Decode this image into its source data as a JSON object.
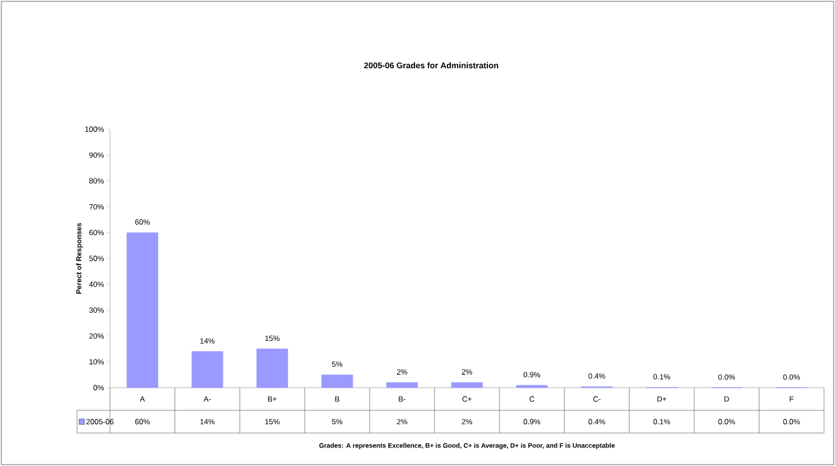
{
  "chart_data": {
    "type": "bar",
    "title": "2005-06 Grades for Administration",
    "annotations": [
      "Grades: A represents Excellence,  B+ is Good, C+ is Average, D+ is Poor, and F is Unacceptable"
    ],
    "ylabel": "Perect of Responses",
    "categories": [
      "A",
      "A-",
      "B+",
      "B",
      "B-",
      "C+",
      "C",
      "C-",
      "D+",
      "D",
      "F"
    ],
    "series": [
      {
        "name": "2005-06",
        "color": "#9999ff",
        "values": [
          60,
          14,
          15,
          5,
          2,
          2,
          0.9,
          0.4,
          0.1,
          0.0,
          0.0
        ],
        "value_labels": [
          "60%",
          "14%",
          "15%",
          "5%",
          "2%",
          "2%",
          "0.9%",
          "0.4%",
          "0.1%",
          "0.0%",
          "0.0%"
        ]
      }
    ],
    "ylim": [
      0,
      100
    ],
    "yticks": [
      {
        "value": 0,
        "label": "0%"
      },
      {
        "value": 10,
        "label": "10%"
      },
      {
        "value": 20,
        "label": "20%"
      },
      {
        "value": 30,
        "label": "30%"
      },
      {
        "value": 40,
        "label": "40%"
      },
      {
        "value": 50,
        "label": "50%"
      },
      {
        "value": 60,
        "label": "60%"
      },
      {
        "value": 70,
        "label": "70%"
      },
      {
        "value": 80,
        "label": "80%"
      },
      {
        "value": 90,
        "label": "90%"
      },
      {
        "value": 100,
        "label": "100%"
      }
    ],
    "legend": "bottom left",
    "grid": false
  }
}
